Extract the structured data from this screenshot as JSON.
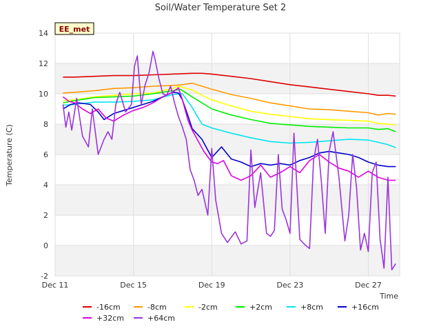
{
  "chart_data": {
    "type": "line",
    "title": "Soil/Water Temperature Set 2",
    "xlabel": "Time",
    "ylabel": "Temperature (C)",
    "badge": "EE_met",
    "ylim": [
      -2,
      14
    ],
    "xlim": [
      0,
      17.6
    ],
    "yticks": [
      -2,
      0,
      2,
      4,
      6,
      8,
      10,
      12,
      14
    ],
    "xticks": [
      {
        "x": 0,
        "label": "Dec 11"
      },
      {
        "x": 4,
        "label": "Dec 15"
      },
      {
        "x": 8,
        "label": "Dec 19"
      },
      {
        "x": 12,
        "label": "Dec 23"
      },
      {
        "x": 16,
        "label": "Dec 27"
      }
    ],
    "x_unit": "days since Dec 11",
    "grid": true,
    "band_colors": [
      "#f2f2f2",
      "#ffffff"
    ],
    "legend_placement": "bottom",
    "series": [
      {
        "name": "-16cm",
        "color": "#dd0000",
        "x": [
          0.4,
          1,
          2,
          3,
          4,
          5,
          6,
          7,
          7.5,
          8,
          9,
          10,
          11,
          12,
          13,
          14,
          15,
          16,
          16.5,
          17,
          17.4
        ],
        "y": [
          11.1,
          11.1,
          11.15,
          11.2,
          11.2,
          11.25,
          11.3,
          11.35,
          11.35,
          11.3,
          11.15,
          11.0,
          10.8,
          10.6,
          10.45,
          10.3,
          10.15,
          10.0,
          9.9,
          9.9,
          9.85
        ]
      },
      {
        "name": "-8cm",
        "color": "#ff9900",
        "x": [
          0.4,
          1,
          2,
          3,
          4,
          5,
          6,
          6.5,
          7,
          7.5,
          8,
          9,
          10,
          11,
          12,
          13,
          14,
          15,
          16,
          16.5,
          17,
          17.4
        ],
        "y": [
          10.05,
          10.1,
          10.2,
          10.35,
          10.4,
          10.5,
          10.55,
          10.6,
          10.7,
          10.5,
          10.3,
          9.95,
          9.7,
          9.4,
          9.2,
          9.0,
          8.95,
          8.85,
          8.75,
          8.6,
          8.7,
          8.65
        ]
      },
      {
        "name": "-2cm",
        "color": "#ffff00",
        "x": [
          0.4,
          1,
          2,
          3,
          4,
          5,
          6,
          6.3,
          7,
          7.5,
          8,
          9,
          10,
          11,
          12,
          13,
          14,
          15,
          16,
          16.5,
          17,
          17.4
        ],
        "y": [
          9.55,
          9.6,
          9.8,
          9.9,
          10.0,
          10.05,
          10.35,
          10.5,
          10.25,
          9.9,
          9.6,
          9.2,
          8.85,
          8.65,
          8.5,
          8.35,
          8.3,
          8.25,
          8.2,
          8.05,
          8.0,
          7.95
        ]
      },
      {
        "name": "+2cm",
        "color": "#00ee00",
        "x": [
          0.4,
          1,
          2,
          3,
          4,
          5,
          6,
          6.4,
          7,
          7.5,
          8,
          9,
          10,
          11,
          12,
          13,
          14,
          15,
          16,
          16.5,
          17,
          17.4
        ],
        "y": [
          9.4,
          9.55,
          9.75,
          9.8,
          9.85,
          10.0,
          10.2,
          10.3,
          9.8,
          9.4,
          9.0,
          8.6,
          8.3,
          8.05,
          7.95,
          7.85,
          7.8,
          7.75,
          7.75,
          7.65,
          7.7,
          7.5
        ]
      },
      {
        "name": "+8cm",
        "color": "#00e5ee",
        "x": [
          0.4,
          1,
          2,
          3,
          4,
          5,
          6,
          6.5,
          7,
          7.5,
          8,
          9,
          10,
          11,
          12,
          13,
          14,
          15,
          16,
          16.5,
          17,
          17.4
        ],
        "y": [
          9.25,
          9.3,
          9.45,
          9.45,
          9.5,
          9.6,
          9.95,
          10.0,
          9.1,
          8.0,
          7.75,
          7.4,
          7.1,
          6.85,
          6.75,
          6.8,
          6.9,
          7.0,
          6.95,
          6.8,
          6.65,
          6.45
        ]
      },
      {
        "name": "+16cm",
        "color": "#0000cc",
        "x": [
          0.4,
          0.8,
          1.2,
          1.8,
          2.2,
          2.5,
          3,
          3.5,
          4,
          4.5,
          5,
          5.5,
          6,
          6.3,
          6.5,
          6.8,
          7,
          7.5,
          8,
          8.5,
          9,
          9.5,
          10,
          10.5,
          11,
          11.5,
          12,
          12.5,
          13,
          13.5,
          14,
          14.5,
          15,
          15.5,
          16,
          16.5,
          17,
          17.4
        ],
        "y": [
          9.0,
          9.3,
          9.4,
          9.3,
          8.8,
          8.3,
          8.7,
          8.9,
          9.1,
          9.3,
          9.5,
          9.8,
          10.1,
          10.05,
          9.6,
          8.5,
          7.7,
          7.0,
          5.8,
          6.5,
          5.7,
          5.5,
          5.2,
          5.4,
          5.3,
          5.4,
          5.3,
          5.6,
          5.8,
          6.1,
          6.2,
          6.1,
          6.0,
          5.8,
          5.5,
          5.3,
          5.2,
          5.2
        ]
      },
      {
        "name": "+32cm",
        "color": "#dd00dd",
        "x": [
          0.4,
          0.7,
          1,
          1.4,
          1.8,
          2.2,
          2.6,
          3,
          3.5,
          4,
          4.5,
          5,
          5.5,
          6,
          6.3,
          6.5,
          6.8,
          7,
          7.3,
          7.6,
          8,
          8.3,
          8.6,
          9,
          9.5,
          10,
          10.5,
          11,
          11.5,
          12,
          12.5,
          13,
          13.5,
          14,
          14.5,
          15,
          15.5,
          16,
          16.5,
          17,
          17.4
        ],
        "y": [
          9.8,
          9.5,
          9.4,
          9.0,
          8.7,
          9.0,
          8.4,
          8.2,
          8.6,
          8.9,
          9.1,
          9.4,
          9.8,
          10.1,
          10.4,
          9.6,
          8.2,
          7.6,
          6.9,
          6.2,
          5.5,
          5.4,
          5.6,
          4.6,
          4.3,
          4.6,
          5.3,
          4.5,
          4.8,
          5.2,
          4.8,
          5.6,
          6.0,
          5.5,
          5.1,
          4.9,
          4.5,
          4.9,
          4.5,
          4.3,
          4.3
        ]
      },
      {
        "name": "+64cm",
        "color": "#9933dd",
        "x": [
          0.4,
          0.55,
          0.7,
          0.85,
          1.1,
          1.4,
          1.7,
          1.9,
          2.2,
          2.5,
          2.7,
          2.9,
          3.1,
          3.3,
          3.6,
          3.9,
          4.05,
          4.2,
          4.4,
          4.6,
          4.8,
          5.0,
          5.1,
          5.3,
          5.5,
          5.7,
          5.9,
          6.1,
          6.3,
          6.5,
          6.7,
          6.9,
          7.1,
          7.3,
          7.5,
          7.8,
          8.0,
          8.2,
          8.5,
          8.8,
          9.2,
          9.5,
          9.8,
          10.0,
          10.2,
          10.5,
          10.8,
          11.0,
          11.2,
          11.4,
          11.6,
          11.8,
          12.0,
          12.2,
          12.5,
          12.8,
          13.0,
          13.2,
          13.4,
          13.6,
          13.8,
          14.0,
          14.2,
          14.5,
          14.8,
          15.0,
          15.2,
          15.4,
          15.6,
          15.8,
          16.0,
          16.2,
          16.4,
          16.6,
          16.8,
          17.0,
          17.2,
          17.4
        ],
        "y": [
          9.3,
          7.8,
          8.8,
          7.6,
          9.7,
          7.2,
          6.5,
          9.0,
          6.0,
          7.0,
          7.5,
          7.0,
          9.3,
          10.1,
          8.8,
          9.3,
          11.8,
          12.5,
          9.3,
          10.6,
          11.4,
          12.8,
          12.3,
          11.0,
          10.0,
          9.9,
          10.5,
          9.4,
          8.5,
          7.8,
          7.0,
          5.0,
          4.3,
          3.3,
          3.7,
          2.0,
          6.4,
          3.0,
          0.8,
          0.2,
          0.9,
          0.1,
          0.3,
          6.3,
          2.5,
          4.8,
          0.8,
          0.6,
          1.0,
          6.0,
          2.4,
          1.7,
          0.8,
          7.4,
          0.4,
          0.0,
          -0.2,
          5.6,
          7.0,
          4.2,
          0.8,
          6.2,
          7.5,
          4.5,
          0.3,
          2.0,
          6.0,
          3.8,
          -0.3,
          0.8,
          -0.4,
          4.8,
          5.5,
          0.4,
          -1.5,
          4.5,
          -1.6,
          -1.2
        ]
      }
    ]
  }
}
